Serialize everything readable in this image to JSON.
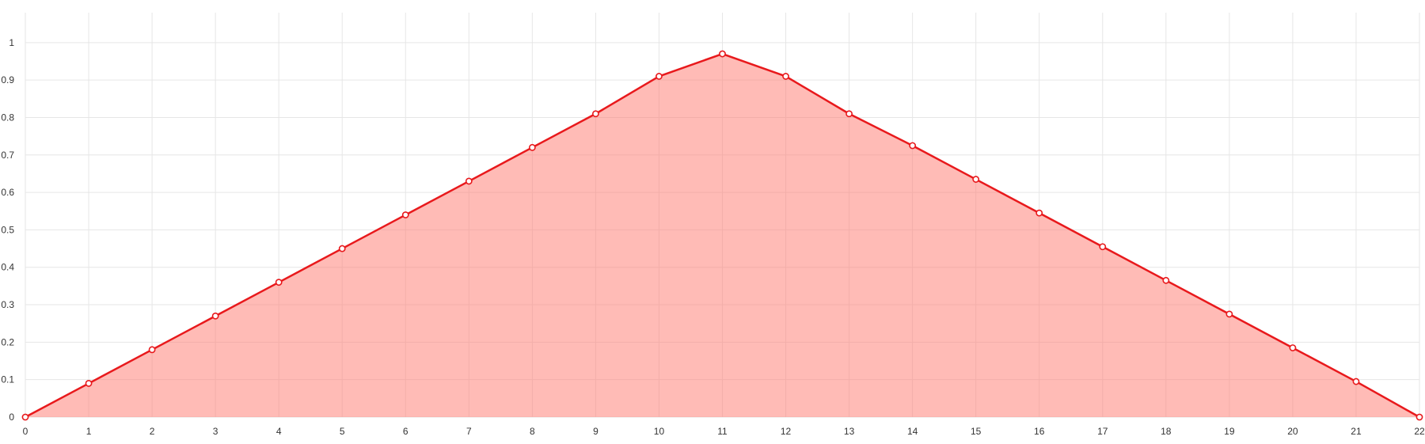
{
  "chart_data": {
    "type": "area",
    "title": "",
    "xlabel": "",
    "ylabel": "",
    "xlim": [
      0,
      22
    ],
    "ylim": [
      0,
      1.08
    ],
    "x_ticks": [
      "0",
      "1",
      "2",
      "3",
      "4",
      "5",
      "6",
      "7",
      "8",
      "9",
      "10",
      "11",
      "12",
      "13",
      "14",
      "15",
      "16",
      "17",
      "18",
      "19",
      "20",
      "21",
      "22"
    ],
    "y_ticks": [
      "0",
      "0.1",
      "0.2",
      "0.3",
      "0.4",
      "0.5",
      "0.6",
      "0.7",
      "0.8",
      "0.9",
      "1"
    ],
    "grid": true,
    "legend": "none",
    "series": [
      {
        "color": "#e8191c",
        "fill": "rgba(255,120,110,0.5)",
        "x": [
          0,
          1,
          2,
          3,
          4,
          5,
          6,
          7,
          8,
          9,
          10,
          11,
          12,
          13,
          14,
          15,
          16,
          17,
          18,
          19,
          20,
          21,
          22
        ],
        "values": [
          0,
          0.09,
          0.18,
          0.27,
          0.36,
          0.45,
          0.54,
          0.63,
          0.72,
          0.81,
          0.91,
          0.97,
          0.91,
          0.81,
          0.725,
          0.635,
          0.545,
          0.455,
          0.365,
          0.275,
          0.185,
          0.095,
          0
        ]
      }
    ]
  }
}
